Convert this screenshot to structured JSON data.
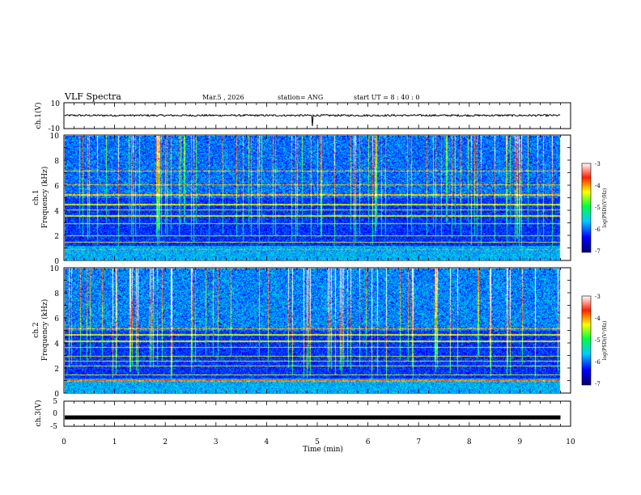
{
  "header": {
    "title": "VLF Spectra",
    "date": "Mar.5 , 2026",
    "station": "station= ANG",
    "start": "start UT = 8 : 40 : 0"
  },
  "chart_data": [
    {
      "type": "line",
      "id": "ch1_waveform",
      "ylabel": "ch.1(V)",
      "ylim": [
        -10,
        10
      ],
      "y_ticks": [
        "10",
        "-10"
      ],
      "baseline": 0.2,
      "series": [
        {
          "name": "ch.1",
          "note": "noisy waveform around ~0 V with a spike near t=4.9 min"
        }
      ]
    },
    {
      "type": "heatmap",
      "id": "ch1_spectrogram",
      "ylabel_lines": [
        "ch.1",
        "Frequency (kHz)"
      ],
      "ylim": [
        0,
        10
      ],
      "y_ticks": [
        "0",
        "2",
        "4",
        "6",
        "8",
        "10"
      ],
      "colorbar": {
        "label": "log(PSD)(V²/Hz)",
        "range": [
          -7,
          -3
        ],
        "ticks": [
          "-3",
          "-4",
          "-5",
          "-6",
          "-7"
        ]
      },
      "strong_lines_khz": [
        0.9,
        1.5,
        2.0,
        3.0,
        3.6,
        4.1,
        4.5,
        5.3,
        6.1,
        7.2
      ]
    },
    {
      "type": "heatmap",
      "id": "ch2_spectrogram",
      "ylabel_lines": [
        "ch.2",
        "Frequency (kHz)"
      ],
      "ylim": [
        0,
        10
      ],
      "y_ticks": [
        "0",
        "2",
        "4",
        "6",
        "8",
        "10"
      ],
      "colorbar": {
        "label": "log(PSD)(V²/Hz)",
        "range": [
          -7,
          -3
        ],
        "ticks": [
          "-3",
          "-4",
          "-5",
          "-6",
          "-7"
        ]
      },
      "strong_lines_khz": [
        1.0,
        1.5,
        2.2,
        2.6,
        3.0,
        3.7,
        4.2,
        4.7,
        5.2
      ]
    },
    {
      "type": "line",
      "id": "ch3_waveform",
      "ylabel": "ch.3(V)",
      "ylim": [
        -5,
        5
      ],
      "y_ticks": [
        "5",
        "0",
        "-5"
      ],
      "baseline": -1.5,
      "series": [
        {
          "name": "ch.3",
          "note": "flat thick trace at about -1.5 V"
        }
      ]
    }
  ],
  "x_axis": {
    "label": "Time (min)",
    "xlim": [
      0,
      10
    ],
    "ticks": [
      "0",
      "1",
      "2",
      "3",
      "4",
      "5",
      "6",
      "7",
      "8",
      "9",
      "10"
    ],
    "data_end": 9.8
  },
  "colors": {
    "frame": "#000000"
  }
}
